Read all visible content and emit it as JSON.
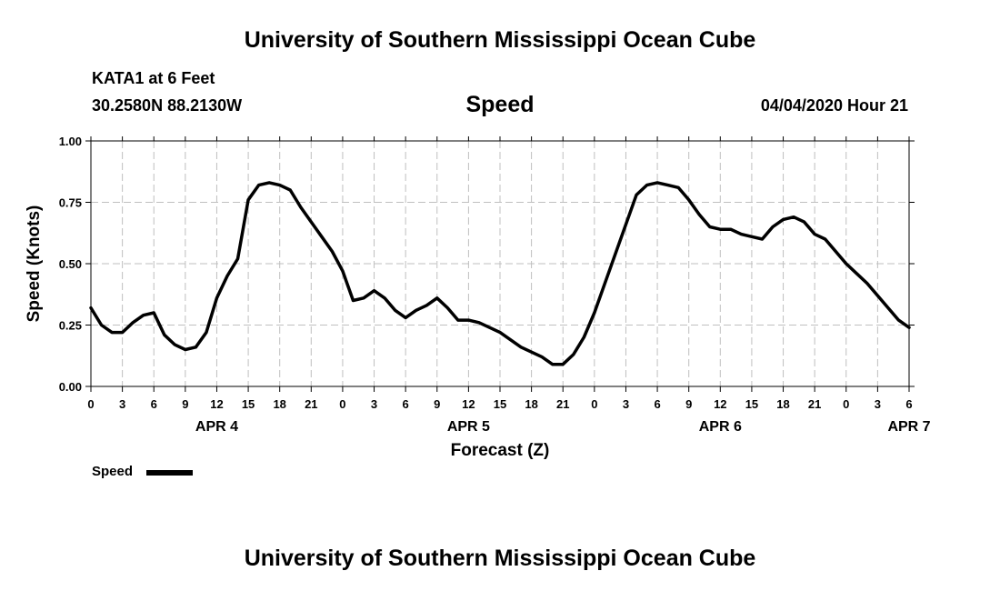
{
  "header": {
    "title": "University of Southern Mississippi Ocean Cube",
    "station": "KATA1 at 6 Feet",
    "coordinates": "30.2580N 88.2130W",
    "parameter": "Speed",
    "datetime": "04/04/2020 Hour 21"
  },
  "footer": {
    "title": "University of Southern Mississippi Ocean Cube"
  },
  "chart_data": {
    "type": "line",
    "title": "Speed",
    "xlabel": "Forecast (Z)",
    "ylabel": "Speed (Knots)",
    "ylim": [
      0,
      1
    ],
    "yticks": [
      "0.00",
      "0.25",
      "0.50",
      "0.75",
      "1.00"
    ],
    "xlim": [
      0,
      78
    ],
    "xtick_labels": [
      "0",
      "3",
      "6",
      "9",
      "12",
      "15",
      "18",
      "21",
      "0",
      "3",
      "6",
      "9",
      "12",
      "15",
      "18",
      "21",
      "0",
      "3",
      "6",
      "9",
      "12",
      "15",
      "18",
      "21",
      "0",
      "3",
      "6"
    ],
    "date_labels": [
      {
        "hour": 12,
        "label": "APR 4"
      },
      {
        "hour": 36,
        "label": "APR 5"
      },
      {
        "hour": 60,
        "label": "APR 6"
      },
      {
        "hour": 78,
        "label": "APR 7"
      }
    ],
    "grid": true,
    "legend": {
      "placement": "bottom-left",
      "entries": [
        "Speed"
      ]
    },
    "series": [
      {
        "name": "Speed",
        "color": "#000000",
        "x": [
          0,
          1,
          2,
          3,
          4,
          5,
          6,
          7,
          8,
          9,
          10,
          11,
          12,
          13,
          14,
          15,
          16,
          17,
          18,
          19,
          20,
          21,
          22,
          23,
          24,
          25,
          26,
          27,
          28,
          29,
          30,
          31,
          32,
          33,
          34,
          35,
          36,
          37,
          38,
          39,
          40,
          41,
          42,
          43,
          44,
          45,
          46,
          47,
          48,
          49,
          50,
          51,
          52,
          53,
          54,
          55,
          56,
          57,
          58,
          59,
          60,
          61,
          62,
          63,
          64,
          65,
          66,
          67,
          68,
          69,
          70,
          71,
          72,
          73,
          74,
          75,
          76,
          77,
          78
        ],
        "values": [
          0.32,
          0.25,
          0.22,
          0.22,
          0.26,
          0.29,
          0.3,
          0.21,
          0.17,
          0.15,
          0.16,
          0.22,
          0.36,
          0.45,
          0.52,
          0.76,
          0.82,
          0.83,
          0.82,
          0.8,
          0.73,
          0.67,
          0.61,
          0.55,
          0.47,
          0.35,
          0.36,
          0.39,
          0.36,
          0.31,
          0.28,
          0.31,
          0.33,
          0.36,
          0.32,
          0.27,
          0.27,
          0.26,
          0.24,
          0.22,
          0.19,
          0.16,
          0.14,
          0.12,
          0.09,
          0.09,
          0.13,
          0.2,
          0.3,
          0.42,
          0.54,
          0.66,
          0.78,
          0.82,
          0.83,
          0.82,
          0.81,
          0.76,
          0.7,
          0.65,
          0.64,
          0.64,
          0.62,
          0.61,
          0.6,
          0.65,
          0.68,
          0.69,
          0.67,
          0.62,
          0.6,
          0.55,
          0.5,
          0.46,
          0.42,
          0.37,
          0.32,
          0.27,
          0.24
        ]
      }
    ]
  }
}
